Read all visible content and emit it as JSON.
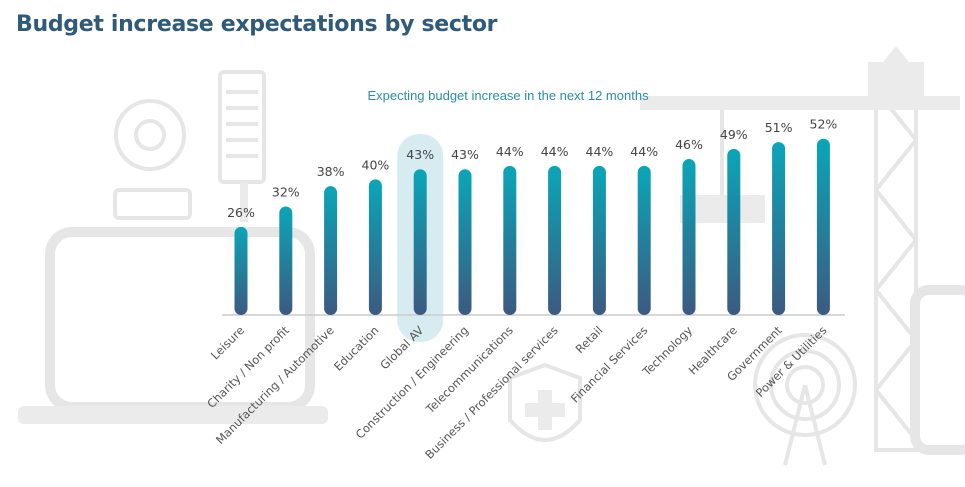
{
  "title": "Budget increase expectations by sector",
  "chart_data": {
    "type": "bar",
    "subtitle": "Expecting budget increase in the next 12 months",
    "categories": [
      "Leisure",
      "Charity / Non profit",
      "Manufacturing / Automotive",
      "Education",
      "Global AV",
      "Construction / Engineering",
      "Telecommunications",
      "Business / Professional services",
      "Retail",
      "Financial Services",
      "Technology",
      "Healthcare",
      "Government",
      "Power & Utilities"
    ],
    "values": [
      26,
      32,
      38,
      40,
      43,
      43,
      44,
      44,
      44,
      44,
      46,
      49,
      51,
      52
    ],
    "value_labels": [
      "26%",
      "32%",
      "38%",
      "40%",
      "43%",
      "43%",
      "44%",
      "44%",
      "44%",
      "44%",
      "46%",
      "49%",
      "51%",
      "52%"
    ],
    "highlight": "Global AV",
    "unit": "%",
    "ylim": [
      0,
      55
    ],
    "grid": false,
    "colors": {
      "bar_top": "#0aa6b8",
      "bar_bottom": "#3c5a80",
      "highlight": "#cfe9ee",
      "baseline": "#cccccc",
      "title": "#2f5a78",
      "subtitle": "#2a8fa4"
    }
  }
}
